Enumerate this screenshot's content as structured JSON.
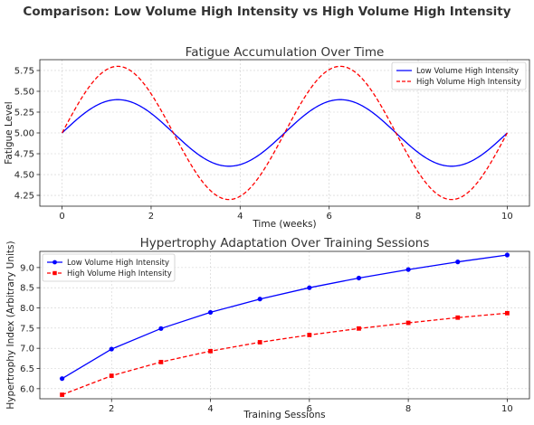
{
  "figure_title": "Comparison: Low Volume High Intensity vs High Volume High Intensity",
  "chart_data": [
    {
      "type": "line",
      "title": "Fatigue Accumulation Over Time",
      "xlabel": "Time (weeks)",
      "ylabel": "Fatigue Level",
      "xlim": [
        -0.5,
        10.5
      ],
      "ylim": [
        4.12,
        5.88
      ],
      "xticks": [
        0,
        2,
        4,
        6,
        8,
        10
      ],
      "xtick_labels": [
        "0",
        "2",
        "4",
        "6",
        "8",
        "10"
      ],
      "yticks": [
        4.25,
        4.5,
        4.75,
        5.0,
        5.25,
        5.5,
        5.75
      ],
      "ytick_labels": [
        "4.25",
        "4.50",
        "4.75",
        "5.00",
        "5.25",
        "5.50",
        "5.75"
      ],
      "grid": true,
      "legend_position": "top-right",
      "series": [
        {
          "name": "Low Volume High Intensity",
          "function": "5 + 0.4*sin(2*pi*x/5)",
          "color": "#0000ff",
          "style": "solid"
        },
        {
          "name": "High Volume High Intensity",
          "function": "5 + 0.8*sin(2*pi*x/5)",
          "color": "#ff0000",
          "style": "dashed"
        }
      ]
    },
    {
      "type": "line",
      "title": "Hypertrophy Adaptation Over Training Sessions",
      "xlabel": "Training Sessions",
      "ylabel": "Hypertrophy Index (Arbitrary Units)",
      "xlim": [
        0.55,
        10.45
      ],
      "ylim": [
        5.75,
        9.4
      ],
      "xticks": [
        2,
        4,
        6,
        8,
        10
      ],
      "xtick_labels": [
        "2",
        "4",
        "6",
        "8",
        "10"
      ],
      "yticks": [
        6.0,
        6.5,
        7.0,
        7.5,
        8.0,
        8.5,
        9.0
      ],
      "ytick_labels": [
        "6.0",
        "6.5",
        "7.0",
        "7.5",
        "8.0",
        "8.5",
        "9.0"
      ],
      "grid": true,
      "legend_position": "top-left",
      "x": [
        1,
        2,
        3,
        4,
        5,
        6,
        7,
        8,
        9,
        10
      ],
      "series": [
        {
          "name": "Low Volume High Intensity",
          "values": [
            6.25,
            6.98,
            7.49,
            7.89,
            8.22,
            8.5,
            8.74,
            8.95,
            9.14,
            9.31
          ],
          "color": "#0000ff",
          "style": "solid",
          "marker": "circle"
        },
        {
          "name": "High Volume High Intensity",
          "values": [
            5.85,
            6.32,
            6.66,
            6.93,
            7.15,
            7.33,
            7.49,
            7.63,
            7.76,
            7.87
          ],
          "color": "#ff0000",
          "style": "dashed",
          "marker": "square"
        }
      ]
    }
  ]
}
